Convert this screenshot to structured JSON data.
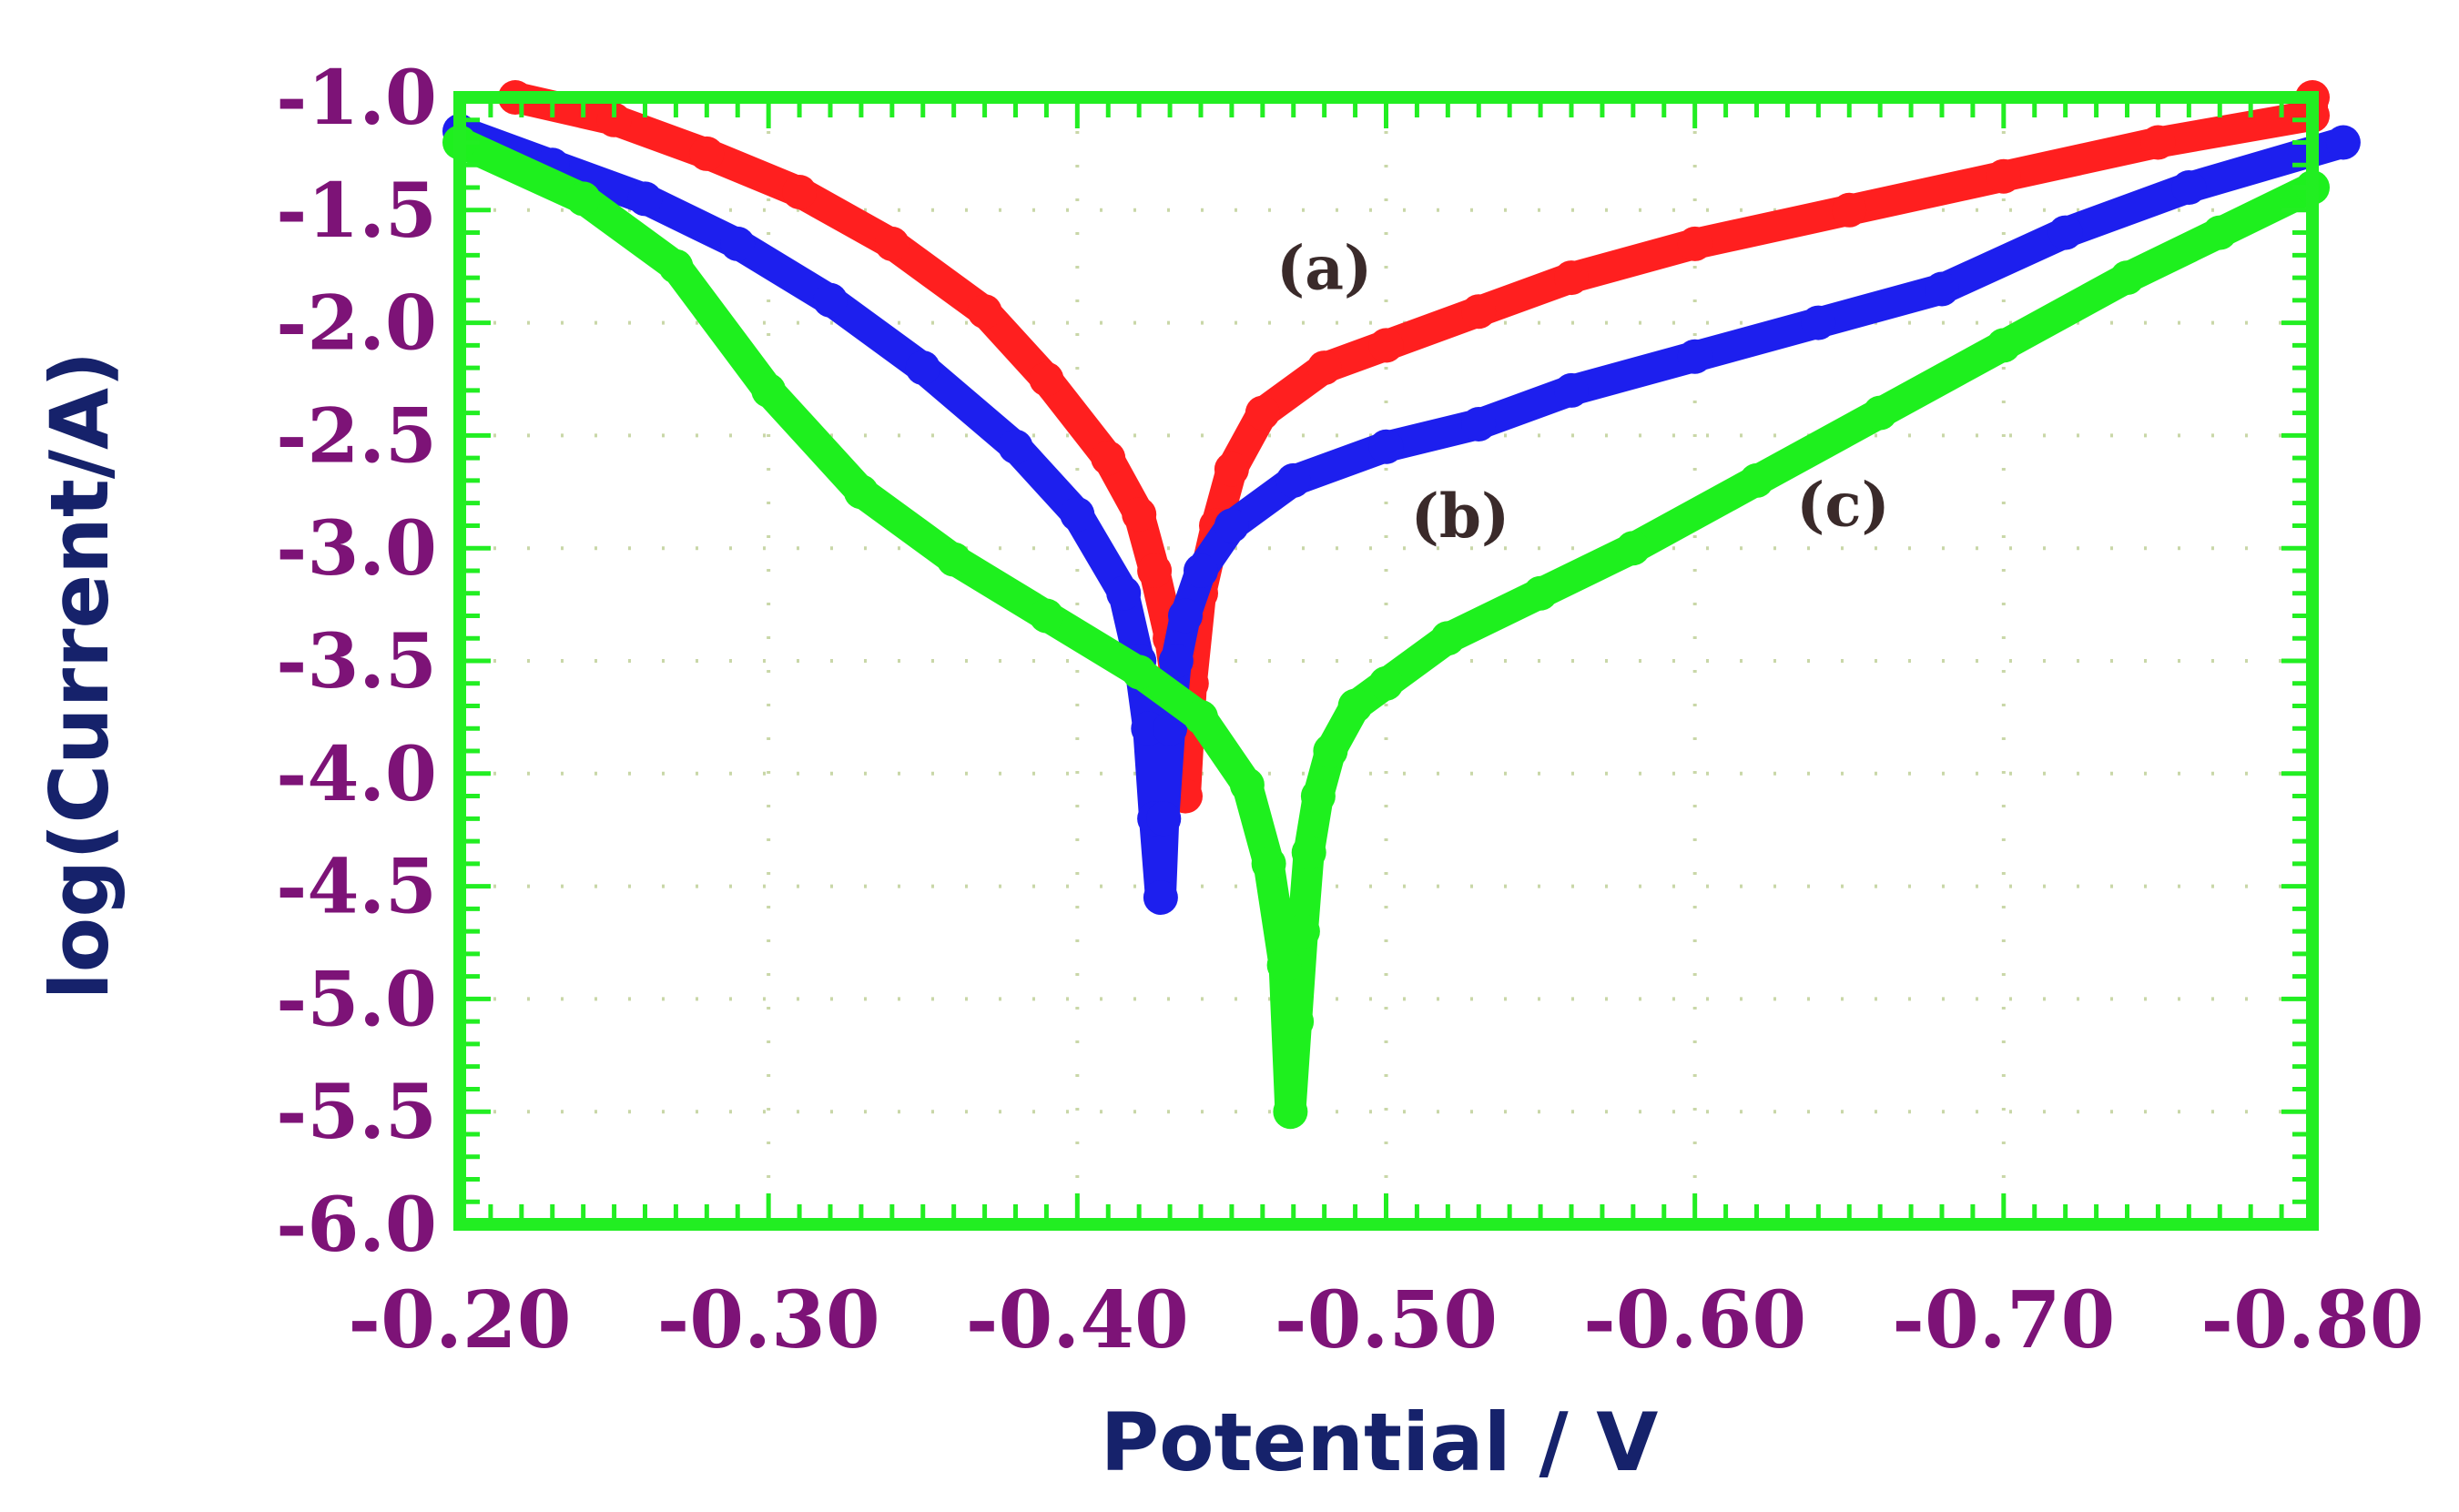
{
  "chart_data": {
    "type": "scatter",
    "title": "",
    "xlabel": "Potential / V",
    "ylabel": "log(Current/A)",
    "xlim": [
      -0.2,
      -0.8
    ],
    "ylim": [
      -6.0,
      -1.0
    ],
    "x_ticks": [
      "-0.20",
      "-0.30",
      "-0.40",
      "-0.50",
      "-0.60",
      "-0.70",
      "-0.80"
    ],
    "y_ticks": [
      "-1.0",
      "-1.5",
      "-2.0",
      "-2.5",
      "-3.0",
      "-3.5",
      "-4.0",
      "-4.5",
      "-5.0",
      "-5.5",
      "-6.0"
    ],
    "grid": "dotted",
    "legend": "none",
    "series": [
      {
        "name": "(a)",
        "color": "#ff1f1f",
        "x": [
          -0.218,
          -0.25,
          -0.28,
          -0.31,
          -0.34,
          -0.37,
          -0.39,
          -0.41,
          -0.42,
          -0.425,
          -0.43,
          -0.433,
          -0.435,
          -0.437,
          -0.44,
          -0.445,
          -0.45,
          -0.46,
          -0.48,
          -0.5,
          -0.53,
          -0.56,
          -0.6,
          -0.65,
          -0.7,
          -0.75,
          -0.8,
          -0.8
        ],
        "y": [
          -1.0,
          -1.1,
          -1.25,
          -1.42,
          -1.65,
          -1.95,
          -2.25,
          -2.6,
          -2.85,
          -3.1,
          -3.4,
          -3.7,
          -4.1,
          -3.6,
          -3.2,
          -2.9,
          -2.65,
          -2.4,
          -2.2,
          -2.1,
          -1.95,
          -1.8,
          -1.65,
          -1.5,
          -1.35,
          -1.2,
          -1.08,
          -1.0
        ]
      },
      {
        "name": "(b)",
        "color": "#1d1fee",
        "x": [
          -0.2,
          -0.23,
          -0.26,
          -0.29,
          -0.32,
          -0.35,
          -0.38,
          -0.4,
          -0.415,
          -0.42,
          -0.423,
          -0.425,
          -0.427,
          -0.428,
          -0.43,
          -0.432,
          -0.435,
          -0.44,
          -0.45,
          -0.47,
          -0.5,
          -0.53,
          -0.56,
          -0.6,
          -0.64,
          -0.68,
          -0.72,
          -0.76,
          -0.81
        ],
        "y": [
          -1.15,
          -1.3,
          -1.45,
          -1.65,
          -1.9,
          -2.2,
          -2.55,
          -2.85,
          -3.2,
          -3.5,
          -3.8,
          -4.2,
          -4.55,
          -4.2,
          -3.8,
          -3.5,
          -3.3,
          -3.1,
          -2.9,
          -2.7,
          -2.55,
          -2.45,
          -2.3,
          -2.15,
          -2.0,
          -1.85,
          -1.6,
          -1.4,
          -1.2
        ]
      },
      {
        "name": "(c)",
        "color": "#1ef01e",
        "x": [
          -0.2,
          -0.24,
          -0.27,
          -0.3,
          -0.33,
          -0.36,
          -0.39,
          -0.42,
          -0.44,
          -0.455,
          -0.462,
          -0.467,
          -0.469,
          -0.471,
          -0.473,
          -0.475,
          -0.478,
          -0.482,
          -0.49,
          -0.5,
          -0.52,
          -0.55,
          -0.58,
          -0.62,
          -0.66,
          -0.7,
          -0.74,
          -0.77,
          -0.8
        ],
        "y": [
          -1.2,
          -1.45,
          -1.75,
          -2.3,
          -2.75,
          -3.05,
          -3.3,
          -3.55,
          -3.75,
          -4.05,
          -4.4,
          -4.85,
          -5.5,
          -5.1,
          -4.7,
          -4.35,
          -4.1,
          -3.9,
          -3.7,
          -3.6,
          -3.4,
          -3.2,
          -3.0,
          -2.7,
          -2.4,
          -2.1,
          -1.8,
          -1.6,
          -1.4
        ]
      }
    ],
    "annotations": [
      "(a)",
      "(b)",
      "(c)"
    ]
  }
}
